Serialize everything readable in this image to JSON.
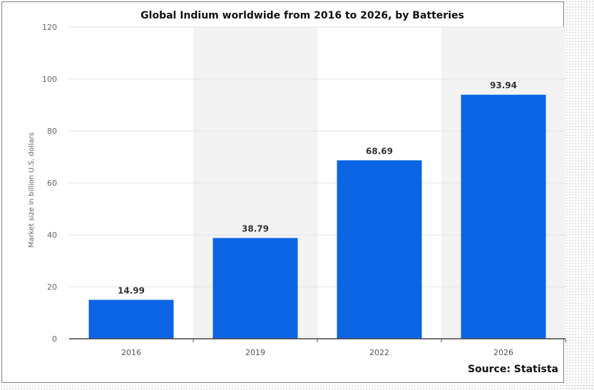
{
  "chart_data": {
    "type": "bar",
    "title": "Global Indium worldwide from 2016 to 2026, by Batteries",
    "ylabel": "Market size in billion U.S. dollars",
    "xlabel": "",
    "categories": [
      "2016",
      "2019",
      "2022",
      "2026"
    ],
    "values": [
      14.99,
      38.79,
      68.69,
      93.94
    ],
    "value_labels": [
      "14.99",
      "38.79",
      "68.69",
      "93.94"
    ],
    "ylim": [
      0,
      120
    ],
    "yticks": [
      0,
      20,
      40,
      60,
      80,
      100,
      120
    ],
    "grid": true,
    "bar_color": "#0b64e3",
    "alt_band_color": "#f3f3f3"
  },
  "source": "Source: Statista"
}
